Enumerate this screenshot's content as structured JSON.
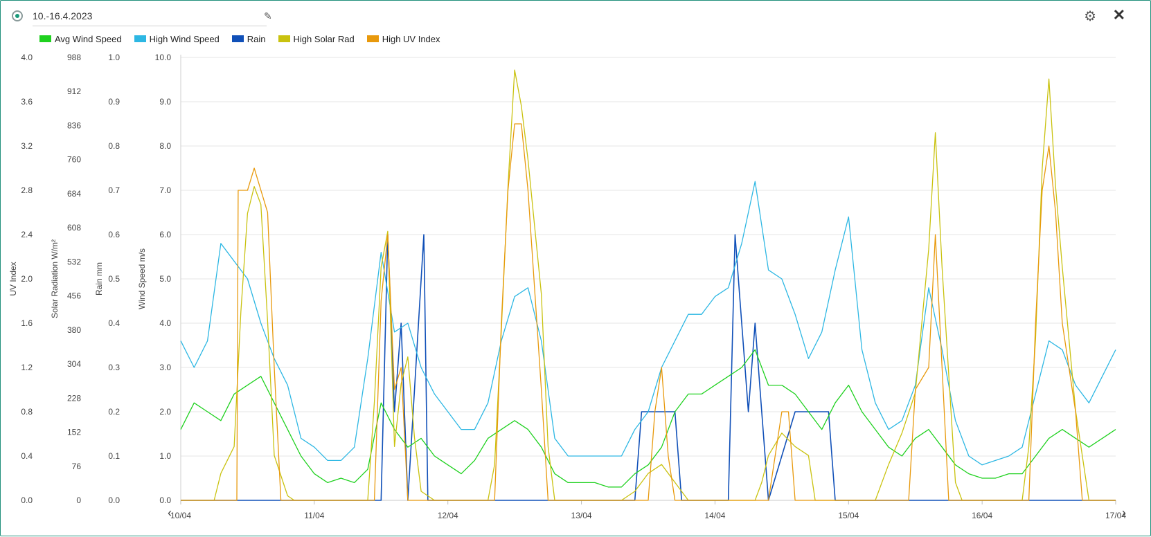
{
  "header": {
    "title": "10.-16.4.2023"
  },
  "icons": {
    "status": "radio-icon",
    "edit": "pencil-icon",
    "settings": "gear-icon",
    "close": "close-icon"
  },
  "legend": [
    {
      "label": "Avg Wind Speed",
      "color": "#1fd11f"
    },
    {
      "label": "High Wind Speed",
      "color": "#2db7e3"
    },
    {
      "label": "Rain",
      "color": "#1050b8"
    },
    {
      "label": "High Solar Rad",
      "color": "#c9c20f"
    },
    {
      "label": "High UV Index",
      "color": "#e8990c"
    }
  ],
  "chart_data": {
    "type": "line",
    "x_categories": [
      "10/04",
      "11/04",
      "12/04",
      "13/04",
      "14/04",
      "15/04",
      "16/04",
      "17/04"
    ],
    "grid": true,
    "axes": [
      {
        "title": "UV Index",
        "min": 0,
        "max": 4.0,
        "ticks": [
          "0.0",
          "0.4",
          "0.8",
          "1.2",
          "1.6",
          "2.0",
          "2.4",
          "2.8",
          "3.2",
          "3.6",
          "4.0"
        ]
      },
      {
        "title": "Solar Radiation W/m²",
        "min": 0,
        "max": 988,
        "ticks": [
          "0",
          "76",
          "152",
          "228",
          "304",
          "380",
          "456",
          "532",
          "608",
          "684",
          "760",
          "836",
          "912",
          "988"
        ]
      },
      {
        "title": "Rain mm",
        "min": 0,
        "max": 1.0,
        "ticks": [
          "0.0",
          "0.1",
          "0.2",
          "0.3",
          "0.4",
          "0.5",
          "0.6",
          "0.7",
          "0.8",
          "0.9",
          "1.0"
        ]
      },
      {
        "title": "Wind Speed m/s",
        "min": 0,
        "max": 10.0,
        "ticks": [
          "0.0",
          "1.0",
          "2.0",
          "3.0",
          "4.0",
          "5.0",
          "6.0",
          "7.0",
          "8.0",
          "9.0",
          "10.0"
        ]
      }
    ],
    "series": [
      {
        "name": "Avg Wind Speed",
        "axis": "Wind Speed m/s",
        "color": "#1fd11f",
        "points": [
          [
            0.0,
            1.6
          ],
          [
            0.1,
            2.2
          ],
          [
            0.2,
            2.0
          ],
          [
            0.3,
            1.8
          ],
          [
            0.4,
            2.4
          ],
          [
            0.5,
            2.6
          ],
          [
            0.6,
            2.8
          ],
          [
            0.7,
            2.2
          ],
          [
            0.8,
            1.6
          ],
          [
            0.9,
            1.0
          ],
          [
            1.0,
            0.6
          ],
          [
            1.1,
            0.4
          ],
          [
            1.2,
            0.5
          ],
          [
            1.3,
            0.4
          ],
          [
            1.4,
            0.7
          ],
          [
            1.5,
            2.2
          ],
          [
            1.6,
            1.6
          ],
          [
            1.7,
            1.2
          ],
          [
            1.8,
            1.4
          ],
          [
            1.9,
            1.0
          ],
          [
            2.0,
            0.8
          ],
          [
            2.1,
            0.6
          ],
          [
            2.2,
            0.9
          ],
          [
            2.3,
            1.4
          ],
          [
            2.4,
            1.6
          ],
          [
            2.5,
            1.8
          ],
          [
            2.6,
            1.6
          ],
          [
            2.7,
            1.2
          ],
          [
            2.8,
            0.6
          ],
          [
            2.9,
            0.4
          ],
          [
            3.0,
            0.4
          ],
          [
            3.1,
            0.4
          ],
          [
            3.2,
            0.3
          ],
          [
            3.3,
            0.3
          ],
          [
            3.4,
            0.6
          ],
          [
            3.5,
            0.8
          ],
          [
            3.6,
            1.2
          ],
          [
            3.7,
            2.0
          ],
          [
            3.8,
            2.4
          ],
          [
            3.9,
            2.4
          ],
          [
            4.0,
            2.6
          ],
          [
            4.1,
            2.8
          ],
          [
            4.2,
            3.0
          ],
          [
            4.3,
            3.4
          ],
          [
            4.4,
            2.6
          ],
          [
            4.5,
            2.6
          ],
          [
            4.6,
            2.4
          ],
          [
            4.7,
            2.0
          ],
          [
            4.8,
            1.6
          ],
          [
            4.9,
            2.2
          ],
          [
            5.0,
            2.6
          ],
          [
            5.1,
            2.0
          ],
          [
            5.2,
            1.6
          ],
          [
            5.3,
            1.2
          ],
          [
            5.4,
            1.0
          ],
          [
            5.5,
            1.4
          ],
          [
            5.6,
            1.6
          ],
          [
            5.7,
            1.2
          ],
          [
            5.8,
            0.8
          ],
          [
            5.9,
            0.6
          ],
          [
            6.0,
            0.5
          ],
          [
            6.1,
            0.5
          ],
          [
            6.2,
            0.6
          ],
          [
            6.3,
            0.6
          ],
          [
            6.4,
            1.0
          ],
          [
            6.5,
            1.4
          ],
          [
            6.6,
            1.6
          ],
          [
            6.7,
            1.4
          ],
          [
            6.8,
            1.2
          ],
          [
            6.9,
            1.4
          ],
          [
            7.0,
            1.6
          ]
        ]
      },
      {
        "name": "High Wind Speed",
        "axis": "Wind Speed m/s",
        "color": "#2db7e3",
        "points": [
          [
            0.0,
            3.6
          ],
          [
            0.1,
            3.0
          ],
          [
            0.2,
            3.6
          ],
          [
            0.3,
            5.8
          ],
          [
            0.4,
            5.4
          ],
          [
            0.5,
            5.0
          ],
          [
            0.6,
            4.0
          ],
          [
            0.7,
            3.2
          ],
          [
            0.8,
            2.6
          ],
          [
            0.9,
            1.4
          ],
          [
            1.0,
            1.2
          ],
          [
            1.1,
            0.9
          ],
          [
            1.2,
            0.9
          ],
          [
            1.3,
            1.2
          ],
          [
            1.4,
            3.2
          ],
          [
            1.5,
            5.6
          ],
          [
            1.6,
            3.8
          ],
          [
            1.7,
            4.0
          ],
          [
            1.8,
            3.0
          ],
          [
            1.9,
            2.4
          ],
          [
            2.0,
            2.0
          ],
          [
            2.1,
            1.6
          ],
          [
            2.2,
            1.6
          ],
          [
            2.3,
            2.2
          ],
          [
            2.4,
            3.6
          ],
          [
            2.5,
            4.6
          ],
          [
            2.6,
            4.8
          ],
          [
            2.7,
            3.6
          ],
          [
            2.8,
            1.4
          ],
          [
            2.9,
            1.0
          ],
          [
            3.0,
            1.0
          ],
          [
            3.1,
            1.0
          ],
          [
            3.2,
            1.0
          ],
          [
            3.3,
            1.0
          ],
          [
            3.4,
            1.6
          ],
          [
            3.5,
            2.0
          ],
          [
            3.6,
            3.0
          ],
          [
            3.7,
            3.6
          ],
          [
            3.8,
            4.2
          ],
          [
            3.9,
            4.2
          ],
          [
            4.0,
            4.6
          ],
          [
            4.1,
            4.8
          ],
          [
            4.2,
            5.8
          ],
          [
            4.3,
            7.2
          ],
          [
            4.4,
            5.2
          ],
          [
            4.5,
            5.0
          ],
          [
            4.6,
            4.2
          ],
          [
            4.7,
            3.2
          ],
          [
            4.8,
            3.8
          ],
          [
            4.9,
            5.2
          ],
          [
            5.0,
            6.4
          ],
          [
            5.1,
            3.4
          ],
          [
            5.2,
            2.2
          ],
          [
            5.3,
            1.6
          ],
          [
            5.4,
            1.8
          ],
          [
            5.5,
            2.6
          ],
          [
            5.6,
            4.8
          ],
          [
            5.7,
            3.4
          ],
          [
            5.8,
            1.8
          ],
          [
            5.9,
            1.0
          ],
          [
            6.0,
            0.8
          ],
          [
            6.1,
            0.9
          ],
          [
            6.2,
            1.0
          ],
          [
            6.3,
            1.2
          ],
          [
            6.4,
            2.4
          ],
          [
            6.5,
            3.6
          ],
          [
            6.6,
            3.4
          ],
          [
            6.7,
            2.6
          ],
          [
            6.8,
            2.2
          ],
          [
            6.9,
            2.8
          ],
          [
            7.0,
            3.4
          ]
        ]
      },
      {
        "name": "Rain",
        "axis": "Rain mm",
        "color": "#1050b8",
        "points": [
          [
            0.0,
            0
          ],
          [
            1.5,
            0
          ],
          [
            1.55,
            0.6
          ],
          [
            1.6,
            0.2
          ],
          [
            1.65,
            0.4
          ],
          [
            1.7,
            0
          ],
          [
            1.82,
            0.6
          ],
          [
            1.85,
            0
          ],
          [
            3.4,
            0
          ],
          [
            3.45,
            0.2
          ],
          [
            3.5,
            0.2
          ],
          [
            3.55,
            0.2
          ],
          [
            3.6,
            0.2
          ],
          [
            3.65,
            0.2
          ],
          [
            3.7,
            0.2
          ],
          [
            3.75,
            0
          ],
          [
            4.1,
            0
          ],
          [
            4.15,
            0.6
          ],
          [
            4.2,
            0.4
          ],
          [
            4.25,
            0.2
          ],
          [
            4.3,
            0.4
          ],
          [
            4.35,
            0.2
          ],
          [
            4.4,
            0
          ],
          [
            4.6,
            0.2
          ],
          [
            4.65,
            0.2
          ],
          [
            4.7,
            0.2
          ],
          [
            4.75,
            0.2
          ],
          [
            4.8,
            0.2
          ],
          [
            4.85,
            0.2
          ],
          [
            4.9,
            0
          ],
          [
            7.0,
            0
          ]
        ]
      },
      {
        "name": "High Solar Rad",
        "axis": "Solar Radiation W/m²",
        "color": "#c9c20f",
        "points": [
          [
            0.0,
            0
          ],
          [
            0.25,
            0
          ],
          [
            0.3,
            60
          ],
          [
            0.4,
            120
          ],
          [
            0.45,
            420
          ],
          [
            0.5,
            640
          ],
          [
            0.55,
            700
          ],
          [
            0.6,
            660
          ],
          [
            0.65,
            400
          ],
          [
            0.7,
            100
          ],
          [
            0.8,
            10
          ],
          [
            0.85,
            0
          ],
          [
            1.4,
            0
          ],
          [
            1.45,
            220
          ],
          [
            1.5,
            520
          ],
          [
            1.55,
            600
          ],
          [
            1.6,
            120
          ],
          [
            1.65,
            260
          ],
          [
            1.7,
            320
          ],
          [
            1.75,
            140
          ],
          [
            1.8,
            20
          ],
          [
            1.9,
            0
          ],
          [
            2.3,
            0
          ],
          [
            2.35,
            80
          ],
          [
            2.4,
            380
          ],
          [
            2.45,
            700
          ],
          [
            2.5,
            960
          ],
          [
            2.55,
            880
          ],
          [
            2.6,
            760
          ],
          [
            2.7,
            460
          ],
          [
            2.75,
            120
          ],
          [
            2.8,
            0
          ],
          [
            3.3,
            0
          ],
          [
            3.4,
            20
          ],
          [
            3.5,
            60
          ],
          [
            3.6,
            80
          ],
          [
            3.7,
            40
          ],
          [
            3.8,
            0
          ],
          [
            4.3,
            0
          ],
          [
            4.35,
            40
          ],
          [
            4.4,
            100
          ],
          [
            4.5,
            150
          ],
          [
            4.6,
            120
          ],
          [
            4.7,
            100
          ],
          [
            4.75,
            0
          ],
          [
            5.2,
            0
          ],
          [
            5.3,
            80
          ],
          [
            5.4,
            150
          ],
          [
            5.5,
            240
          ],
          [
            5.6,
            560
          ],
          [
            5.65,
            820
          ],
          [
            5.7,
            520
          ],
          [
            5.8,
            40
          ],
          [
            5.85,
            0
          ],
          [
            6.3,
            0
          ],
          [
            6.35,
            120
          ],
          [
            6.4,
            360
          ],
          [
            6.45,
            740
          ],
          [
            6.5,
            940
          ],
          [
            6.55,
            700
          ],
          [
            6.6,
            520
          ],
          [
            6.7,
            200
          ],
          [
            6.8,
            0
          ],
          [
            7.0,
            0
          ]
        ]
      },
      {
        "name": "High UV Index",
        "axis": "UV Index",
        "color": "#e8990c",
        "points": [
          [
            0.0,
            0
          ],
          [
            0.42,
            0
          ],
          [
            0.43,
            2.8
          ],
          [
            0.5,
            2.8
          ],
          [
            0.55,
            3.0
          ],
          [
            0.65,
            2.6
          ],
          [
            0.7,
            1.2
          ],
          [
            0.75,
            0
          ],
          [
            1.45,
            0
          ],
          [
            1.5,
            1.8
          ],
          [
            1.55,
            2.4
          ],
          [
            1.6,
            1.0
          ],
          [
            1.65,
            1.2
          ],
          [
            1.7,
            0
          ],
          [
            2.35,
            0
          ],
          [
            2.4,
            1.6
          ],
          [
            2.45,
            2.8
          ],
          [
            2.5,
            3.4
          ],
          [
            2.55,
            3.4
          ],
          [
            2.6,
            2.8
          ],
          [
            2.7,
            1.0
          ],
          [
            2.75,
            0
          ],
          [
            3.5,
            0
          ],
          [
            3.55,
            0.8
          ],
          [
            3.6,
            1.2
          ],
          [
            3.65,
            0.4
          ],
          [
            3.7,
            0
          ],
          [
            4.4,
            0
          ],
          [
            4.5,
            0.8
          ],
          [
            4.55,
            0.8
          ],
          [
            4.6,
            0
          ],
          [
            5.45,
            0
          ],
          [
            5.5,
            1.0
          ],
          [
            5.6,
            1.2
          ],
          [
            5.65,
            2.4
          ],
          [
            5.7,
            1.2
          ],
          [
            5.75,
            0
          ],
          [
            6.35,
            0
          ],
          [
            6.4,
            1.6
          ],
          [
            6.45,
            2.8
          ],
          [
            6.5,
            3.2
          ],
          [
            6.55,
            2.6
          ],
          [
            6.6,
            1.6
          ],
          [
            6.7,
            0.8
          ],
          [
            6.75,
            0
          ],
          [
            7.0,
            0
          ]
        ]
      }
    ]
  }
}
